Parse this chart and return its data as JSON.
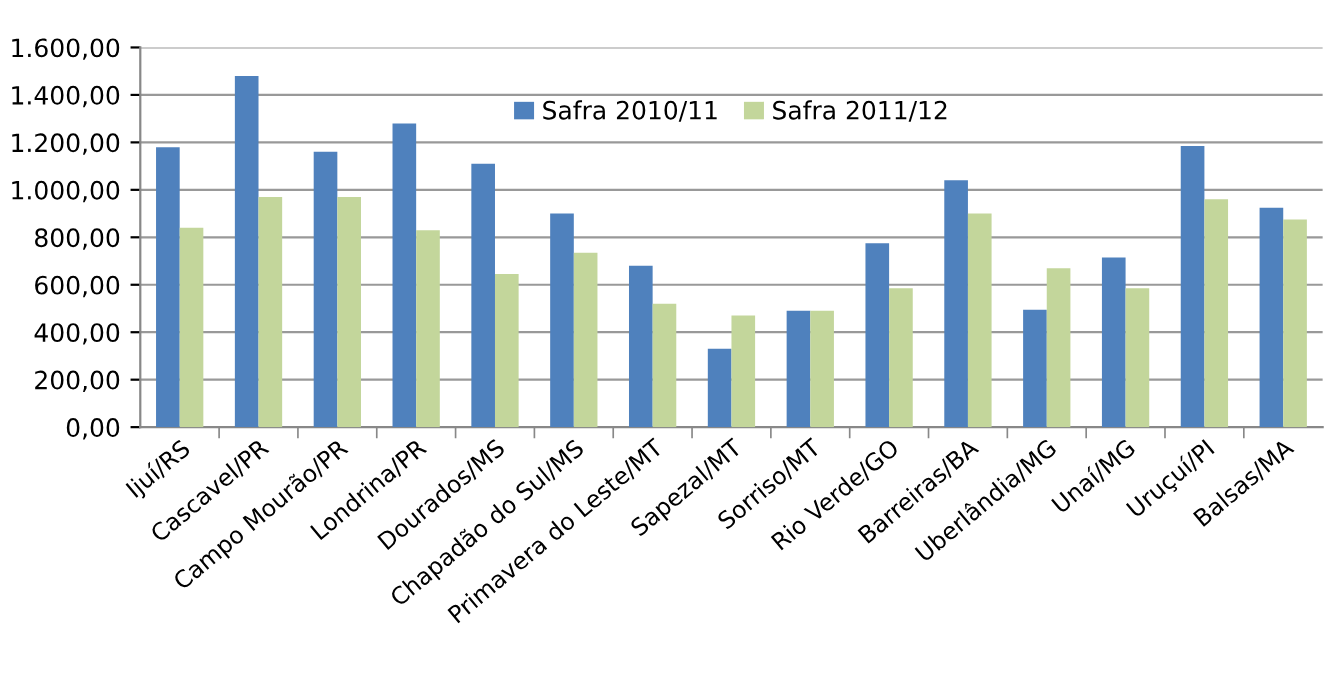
{
  "chart_data": {
    "type": "bar",
    "categories": [
      "Ijuí/RS",
      "Cascavel/PR",
      "Campo Mourão/PR",
      "Londrina/PR",
      "Dourados/MS",
      "Chapadão do Sul/MS",
      "Primavera do Leste/MT",
      "Sapezal/MT",
      "Sorriso/MT",
      "Rio Verde/GO",
      "Barreiras/BA",
      "Uberlândia/MG",
      "Unaí/MG",
      "Uruçuí/PI",
      "Balsas/MA"
    ],
    "series": [
      {
        "name": "Safra 2010/11",
        "color": "#4f81bd",
        "values": [
          1180,
          1480,
          1160,
          1280,
          1110,
          900,
          680,
          330,
          490,
          775,
          1040,
          495,
          715,
          1185,
          925
        ]
      },
      {
        "name": "Safra 2011/12",
        "color": "#c3d69b",
        "values": [
          840,
          970,
          970,
          830,
          645,
          735,
          520,
          470,
          490,
          585,
          900,
          670,
          585,
          960,
          875
        ]
      }
    ],
    "ylim": [
      0,
      1600
    ],
    "yticks": [
      {
        "value": 0,
        "label": "0,00"
      },
      {
        "value": 200,
        "label": "200,00"
      },
      {
        "value": 400,
        "label": "400,00"
      },
      {
        "value": 600,
        "label": "600,00"
      },
      {
        "value": 800,
        "label": "800,00"
      },
      {
        "value": 1000,
        "label": "1.000,00"
      },
      {
        "value": 1200,
        "label": "1.200,00"
      },
      {
        "value": 1400,
        "label": "1.400,00"
      },
      {
        "value": 1600,
        "label": "1.600,00"
      }
    ],
    "grid": "y",
    "legend": "top"
  }
}
